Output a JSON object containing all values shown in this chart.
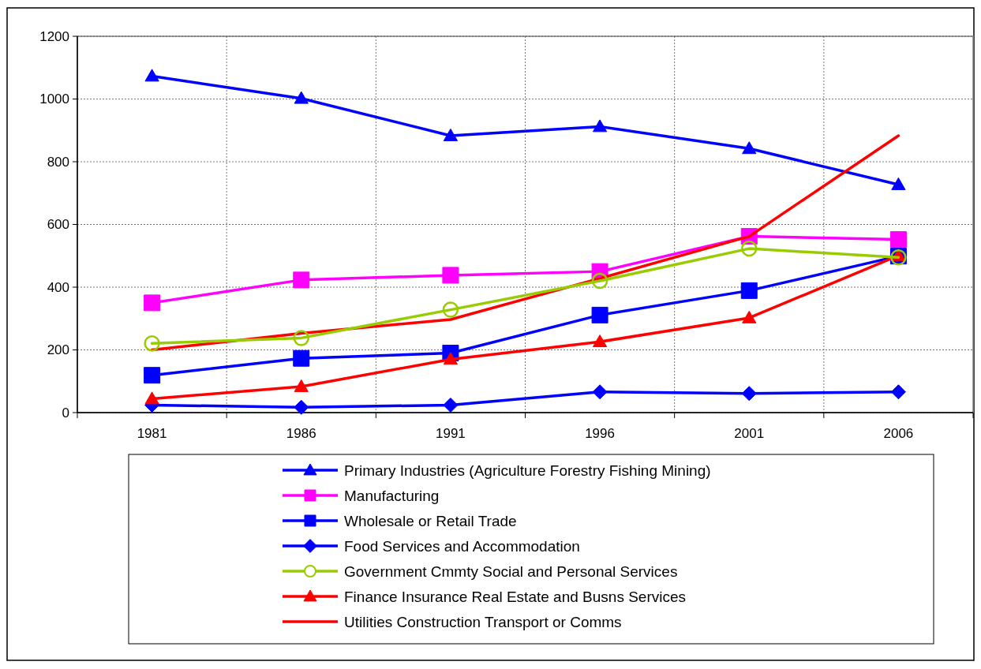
{
  "chart_data": {
    "type": "line",
    "categories": [
      "1981",
      "1986",
      "1991",
      "1996",
      "2001",
      "2006"
    ],
    "ylim": [
      0,
      1200
    ],
    "yticks": [
      0,
      200,
      400,
      600,
      800,
      1000,
      1200
    ],
    "grid": true,
    "legend": "bottom",
    "series": [
      {
        "name": "Primary Industries (Agriculture Forestry Fishing Mining)",
        "color": "#0000ff",
        "marker": "triangle",
        "values": [
          1073,
          1002,
          883,
          912,
          842,
          727
        ]
      },
      {
        "name": "Manufacturing",
        "color": "#ff00ff",
        "marker": "square",
        "values": [
          350,
          423,
          438,
          450,
          562,
          552
        ]
      },
      {
        "name": "Wholesale or Retail Trade",
        "color": "#0000ff",
        "marker": "square",
        "values": [
          119,
          173,
          190,
          311,
          389,
          499
        ]
      },
      {
        "name": "Food Services and Accommodation",
        "color": "#0000ff",
        "marker": "diamond",
        "values": [
          24,
          17,
          24,
          66,
          61,
          66
        ]
      },
      {
        "name": "Government Cmmty Social and Personal Services",
        "color": "#99cc00",
        "marker": "circle",
        "values": [
          221,
          238,
          328,
          420,
          523,
          495
        ]
      },
      {
        "name": "Finance Insurance Real Estate and Busns Services",
        "color": "#ff0000",
        "marker": "triangle",
        "values": [
          44,
          83,
          170,
          226,
          302,
          501
        ]
      },
      {
        "name": "Utilities Construction Transport or Comms",
        "color": "#ff0000",
        "marker": "none",
        "values": [
          200,
          253,
          297,
          428,
          562,
          883
        ]
      }
    ]
  }
}
